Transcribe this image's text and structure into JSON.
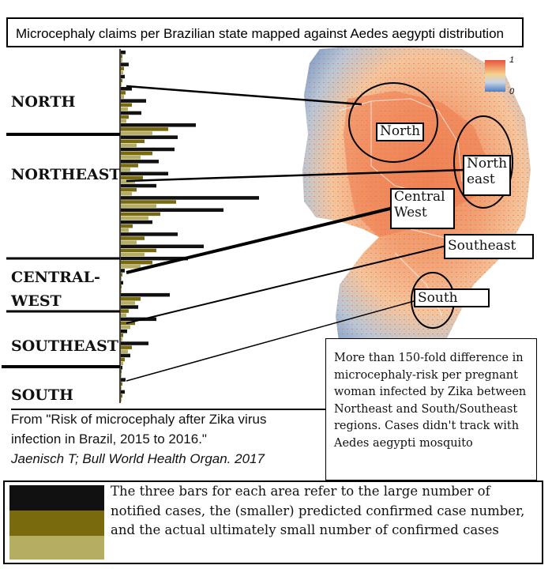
{
  "title": "Microcephaly claims per Brazilian state mapped against Aedes aegypti distribution",
  "colors": {
    "notified": "#111111",
    "predicted": "#7a6a0e",
    "confirmed": "#b5ad62"
  },
  "regions_left": [
    "NORTH",
    "NORTHEAST",
    "CENTRAL-\nWEST",
    "SOUTHEAST",
    "SOUTH"
  ],
  "map_labels": {
    "north": "North",
    "northeast": "North\neast",
    "central_west": "Central\nWest",
    "southeast": "Southeast",
    "south": "South"
  },
  "colorbar": {
    "max": "1",
    "min": "0"
  },
  "citation": {
    "line1": "From  \"Risk of microcephaly after Zika virus",
    "line2": "infection in Brazil, 2015 to 2016.\"",
    "author": "Jaenisch T; Bull World Health Organ. 2017"
  },
  "note": "More than 150-fold difference in microcephaly-risk per pregnant woman infected by Zika between Northeast and South/Southeast regions. Cases didn't track with Aedes aegypti mosquito",
  "legend_text": "The three bars for each area refer to the large number of notified cases, the (smaller) predicted confirmed case number, and the actual ultimately small number of confirmed cases",
  "bars": [
    [
      6,
      2,
      2
    ],
    [
      10,
      4,
      3
    ],
    [
      5,
      2,
      1
    ],
    [
      14,
      6,
      4
    ],
    [
      32,
      14,
      9
    ],
    [
      26,
      10,
      7
    ],
    [
      95,
      60,
      40
    ],
    [
      72,
      30,
      20
    ],
    [
      68,
      40,
      25
    ],
    [
      48,
      22,
      12
    ],
    [
      60,
      28,
      18
    ],
    [
      45,
      20,
      14
    ],
    [
      175,
      70,
      45
    ],
    [
      130,
      50,
      35
    ],
    [
      40,
      15,
      10
    ],
    [
      72,
      30,
      20
    ],
    [
      105,
      45,
      30
    ],
    [
      85,
      40,
      25
    ],
    [
      5,
      2,
      1
    ],
    [
      3,
      1,
      1
    ],
    [
      62,
      25,
      18
    ],
    [
      22,
      10,
      7
    ],
    [
      45,
      18,
      12
    ],
    [
      8,
      3,
      2
    ],
    [
      35,
      14,
      9
    ],
    [
      12,
      5,
      3
    ],
    [
      2,
      1,
      1
    ],
    [
      6,
      2,
      1
    ],
    [
      5,
      2,
      1
    ]
  ]
}
